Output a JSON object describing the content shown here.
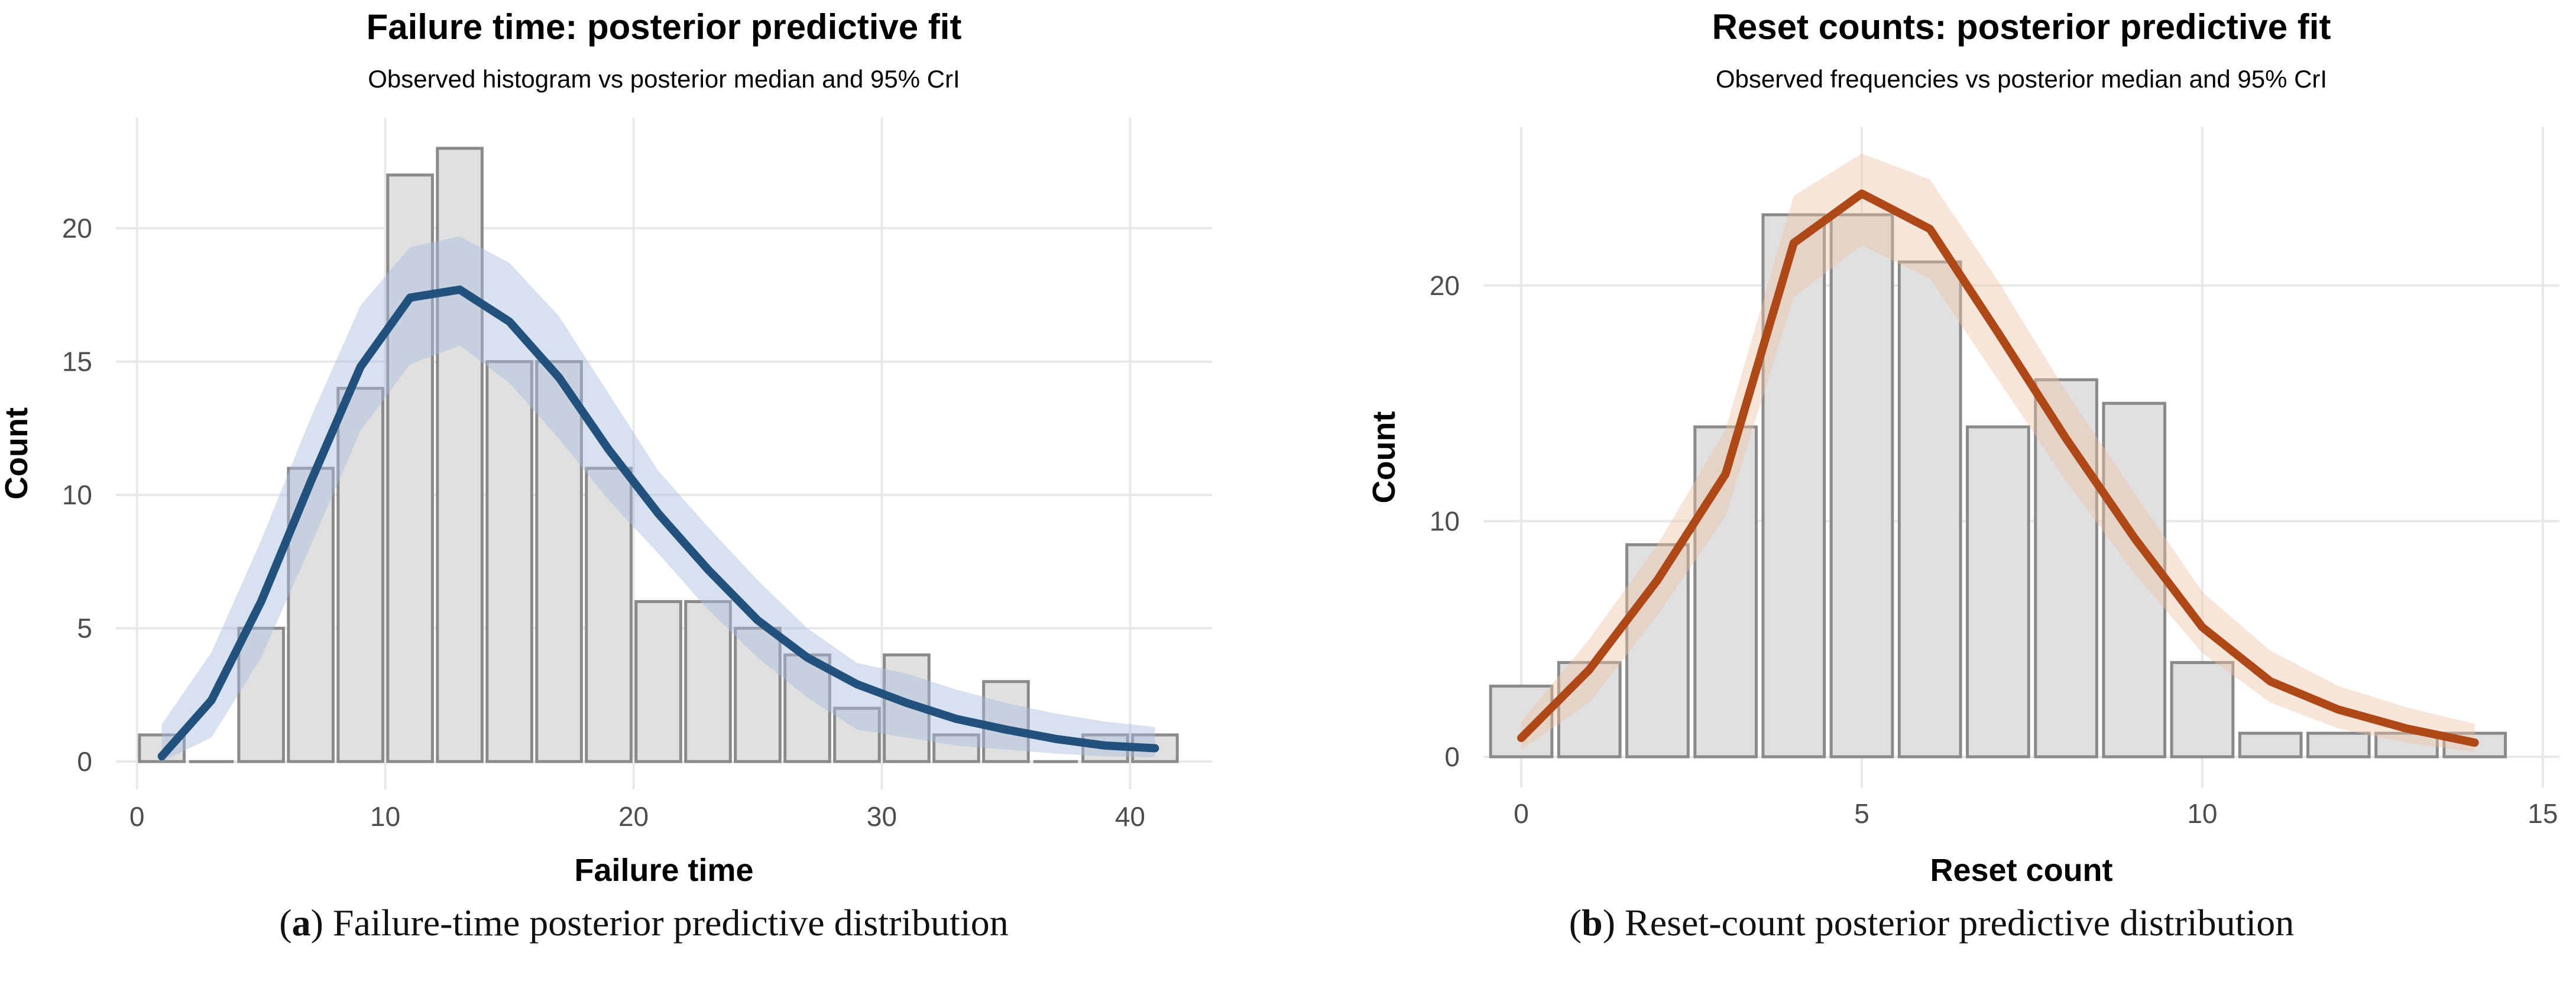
{
  "captions": [
    {
      "open": "(",
      "letter": "a",
      "rest": ") Failure-time posterior predictive distribution"
    },
    {
      "open": "(",
      "letter": "b",
      "rest": ") Reset-count posterior predictive distribution"
    }
  ],
  "chart_data": [
    {
      "type": "bar",
      "subtype": "histogram-with-posterior-median-and-interval",
      "title": "Failure time: posterior predictive fit",
      "subtitle": "Observed histogram vs posterior median and 95% CrI",
      "xlabel": "Failure time",
      "ylabel": "Count",
      "x_ticks": [
        0,
        10,
        20,
        30,
        40
      ],
      "y_ticks": [
        0,
        5,
        10,
        15,
        20
      ],
      "xlim": [
        -0.85,
        43.3
      ],
      "ylim": [
        -1.04,
        24.15
      ],
      "grid": "major-only",
      "legend": "none",
      "bar_width": 1.8,
      "bars": {
        "x": [
          1,
          3,
          5,
          7,
          9,
          11,
          13,
          15,
          17,
          19,
          21,
          23,
          25,
          27,
          29,
          31,
          33,
          35,
          37,
          39,
          41
        ],
        "counts": [
          1,
          0,
          5,
          11,
          14,
          22,
          23,
          15,
          15,
          11,
          6,
          6,
          5,
          4,
          2,
          4,
          1,
          3,
          0,
          1,
          1
        ]
      },
      "median": {
        "x": [
          1,
          3,
          5,
          7,
          9,
          11,
          13,
          15,
          17,
          19,
          21,
          23,
          25,
          27,
          29,
          31,
          33,
          35,
          37,
          39,
          41
        ],
        "y": [
          0.2,
          2.3,
          6.0,
          10.5,
          14.8,
          17.4,
          17.7,
          16.5,
          14.4,
          11.7,
          9.3,
          7.2,
          5.3,
          3.9,
          2.9,
          2.2,
          1.6,
          1.2,
          0.85,
          0.6,
          0.5
        ]
      },
      "ribbon": {
        "x": [
          1,
          3,
          5,
          7,
          9,
          11,
          13,
          15,
          17,
          19,
          21,
          23,
          25,
          27,
          29,
          31,
          33,
          35,
          37,
          39,
          41
        ],
        "lower": [
          0.0,
          0.9,
          3.9,
          8.1,
          12.4,
          14.9,
          15.6,
          14.2,
          12.1,
          9.8,
          7.8,
          5.7,
          3.9,
          2.4,
          1.2,
          0.9,
          0.6,
          0.45,
          0.3,
          0.2,
          0.15
        ],
        "upper": [
          1.4,
          4.1,
          8.3,
          12.9,
          17.1,
          19.3,
          19.7,
          18.7,
          16.7,
          13.8,
          10.9,
          8.8,
          6.8,
          5.0,
          3.7,
          3.3,
          2.7,
          2.2,
          1.8,
          1.5,
          1.3
        ]
      },
      "colors": {
        "line": "#23517D",
        "ribbon": "#A9BCDC",
        "ribbon_opacity": 0.45,
        "bar_fill": "#E0E0E0",
        "bar_stroke": "#8A8A8A",
        "grid": "#E8E8E8",
        "tick_text": "#4D4D4D",
        "text": "#000000"
      }
    },
    {
      "type": "bar",
      "subtype": "histogram-with-posterior-median-and-interval",
      "title": "Reset counts: posterior predictive fit",
      "subtitle": "Observed frequencies vs posterior median and 95% CrI",
      "xlabel": "Reset count",
      "ylabel": "Count",
      "x_ticks": [
        0,
        5,
        10,
        15
      ],
      "y_ticks": [
        0,
        10,
        20
      ],
      "xlim": [
        -0.556,
        15.244
      ],
      "ylim": [
        -1.304,
        26.72
      ],
      "grid": "major-only",
      "legend": "none",
      "bar_width": 0.9,
      "bars": {
        "x": [
          0,
          1,
          2,
          3,
          4,
          5,
          6,
          7,
          8,
          9,
          10,
          11,
          12,
          13,
          14
        ],
        "counts": [
          3,
          4,
          9,
          14,
          23,
          23,
          21,
          14,
          16,
          15,
          4,
          1,
          1,
          1,
          1
        ]
      },
      "median": {
        "x": [
          0,
          1,
          2,
          3,
          4,
          5,
          6,
          7,
          8,
          9,
          10,
          11,
          12,
          13,
          14
        ],
        "y": [
          0.8,
          3.7,
          7.5,
          12.0,
          21.8,
          23.9,
          22.4,
          18.0,
          13.5,
          9.3,
          5.5,
          3.2,
          2.0,
          1.2,
          0.6
        ]
      },
      "ribbon": {
        "x": [
          0,
          1,
          2,
          3,
          4,
          5,
          6,
          7,
          8,
          9,
          10,
          11,
          12,
          13,
          14
        ],
        "lower": [
          0.3,
          2.3,
          6.0,
          10.2,
          19.5,
          21.7,
          20.3,
          16.0,
          11.7,
          7.8,
          4.4,
          2.3,
          1.2,
          0.6,
          0.2
        ],
        "upper": [
          1.5,
          5.0,
          9.0,
          13.9,
          23.8,
          25.6,
          24.5,
          20.2,
          15.5,
          11.2,
          7.0,
          4.5,
          3.0,
          2.1,
          1.4
        ]
      },
      "colors": {
        "line": "#AE4817",
        "ribbon": "#EFC0A4",
        "ribbon_opacity": 0.42,
        "bar_fill": "#E0E0E0",
        "bar_stroke": "#8A8A8A",
        "grid": "#E8E8E8",
        "tick_text": "#4D4D4D",
        "text": "#000000"
      }
    }
  ]
}
